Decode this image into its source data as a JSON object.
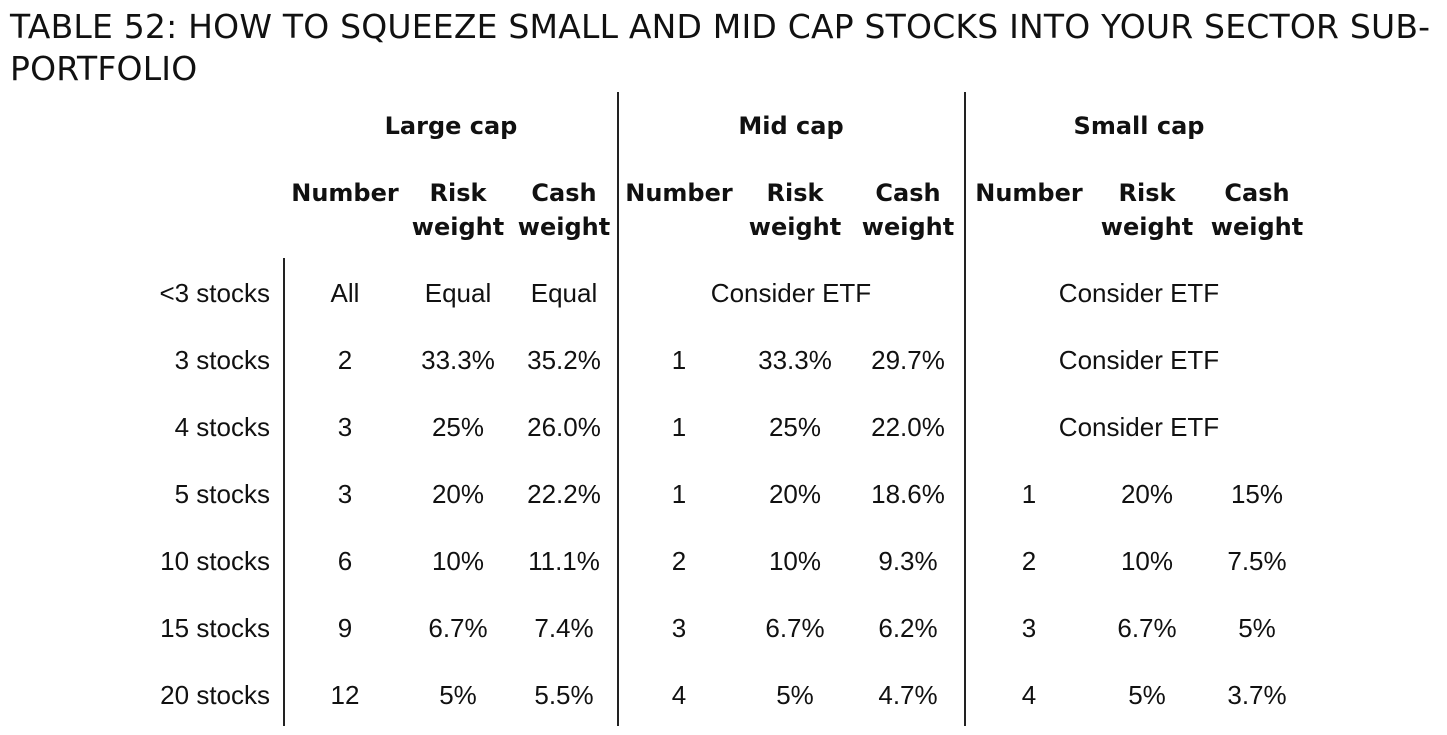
{
  "title": "TABLE 52: HOW TO SQUEEZE SMALL AND MID CAP STOCKS INTO YOUR SECTOR SUB-PORTFOLIO",
  "groups": [
    "Large cap",
    "Mid cap",
    "Small cap"
  ],
  "columns": {
    "number": "Number",
    "risk": "Risk\nweight",
    "cash": "Cash\nweight"
  },
  "rows": [
    {
      "label": "<3 stocks",
      "large": [
        "All",
        "Equal",
        "Equal"
      ],
      "mid": "Consider ETF",
      "small": "Consider ETF"
    },
    {
      "label": "3 stocks",
      "large": [
        "2",
        "33.3%",
        "35.2%"
      ],
      "mid": [
        "1",
        "33.3%",
        "29.7%"
      ],
      "small": "Consider ETF"
    },
    {
      "label": "4 stocks",
      "large": [
        "3",
        "25%",
        "26.0%"
      ],
      "mid": [
        "1",
        "25%",
        "22.0%"
      ],
      "small": "Consider ETF"
    },
    {
      "label": "5 stocks",
      "large": [
        "3",
        "20%",
        "22.2%"
      ],
      "mid": [
        "1",
        "20%",
        "18.6%"
      ],
      "small": [
        "1",
        "20%",
        "15%"
      ]
    },
    {
      "label": "10 stocks",
      "large": [
        "6",
        "10%",
        "11.1%"
      ],
      "mid": [
        "2",
        "10%",
        "9.3%"
      ],
      "small": [
        "2",
        "10%",
        "7.5%"
      ]
    },
    {
      "label": "15 stocks",
      "large": [
        "9",
        "6.7%",
        "7.4%"
      ],
      "mid": [
        "3",
        "6.7%",
        "6.2%"
      ],
      "small": [
        "3",
        "6.7%",
        "5%"
      ]
    },
    {
      "label": "20 stocks",
      "large": [
        "12",
        "5%",
        "5.5%"
      ],
      "mid": [
        "4",
        "5%",
        "4.7%"
      ],
      "small": [
        "4",
        "5%",
        "3.7%"
      ]
    }
  ]
}
